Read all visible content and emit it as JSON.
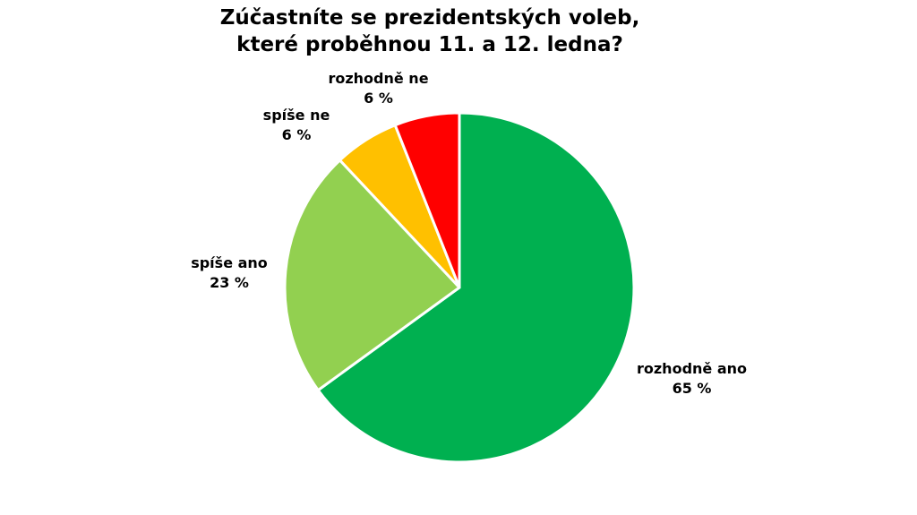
{
  "chart_data": {
    "type": "pie",
    "title": "Zúčastníte se prezidentských voleb, které proběhnou 11. a 12. ledna?",
    "title_lines": [
      "Zúčastníte se prezidentských voleb,",
      "které proběhnou 11. a 12. ledna?"
    ],
    "categories": [
      "rozhodně ano",
      "spíše ano",
      "spíše ne",
      "rozhodně ne"
    ],
    "values": [
      65,
      23,
      6,
      6
    ],
    "unit": "%",
    "colors": [
      "#00B050",
      "#92D050",
      "#FFC000",
      "#FF0000"
    ],
    "start_angle": "12 o'clock, clockwise",
    "legend": "none (data labels on slices)",
    "labels": [
      {
        "name": "rozhodně ano",
        "value": "65 %"
      },
      {
        "name": "spíše ano",
        "value": "23 %"
      },
      {
        "name": "spíše ne",
        "value": "6 %"
      },
      {
        "name": "rozhodně ne",
        "value": "6 %"
      }
    ]
  }
}
